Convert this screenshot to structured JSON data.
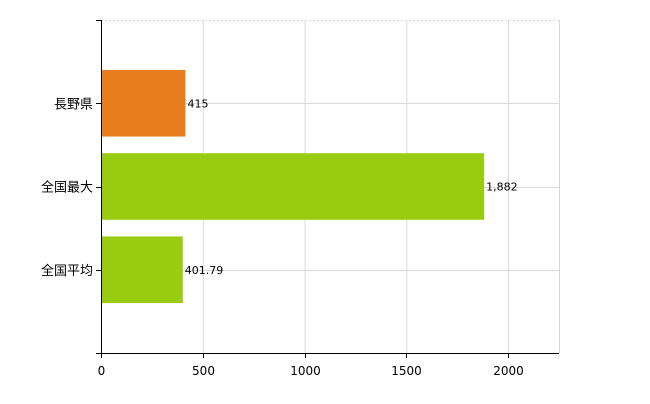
{
  "chart_data": {
    "type": "bar",
    "orientation": "horizontal",
    "categories": [
      "長野県",
      "全国最大",
      "全国平均"
    ],
    "values": [
      415,
      1882,
      401.79
    ],
    "value_labels": [
      "415",
      "1,882",
      "401.79"
    ],
    "bar_colors": [
      "#e87d1e",
      "#99cc11",
      "#99cc11"
    ],
    "xlim": [
      0,
      2250
    ],
    "x_ticks": [
      0,
      500,
      1000,
      1500,
      2000
    ],
    "x_tick_labels": [
      "0",
      "500",
      "1000",
      "1500",
      "2000"
    ],
    "grid": true,
    "title": "",
    "xlabel": "",
    "ylabel": ""
  }
}
